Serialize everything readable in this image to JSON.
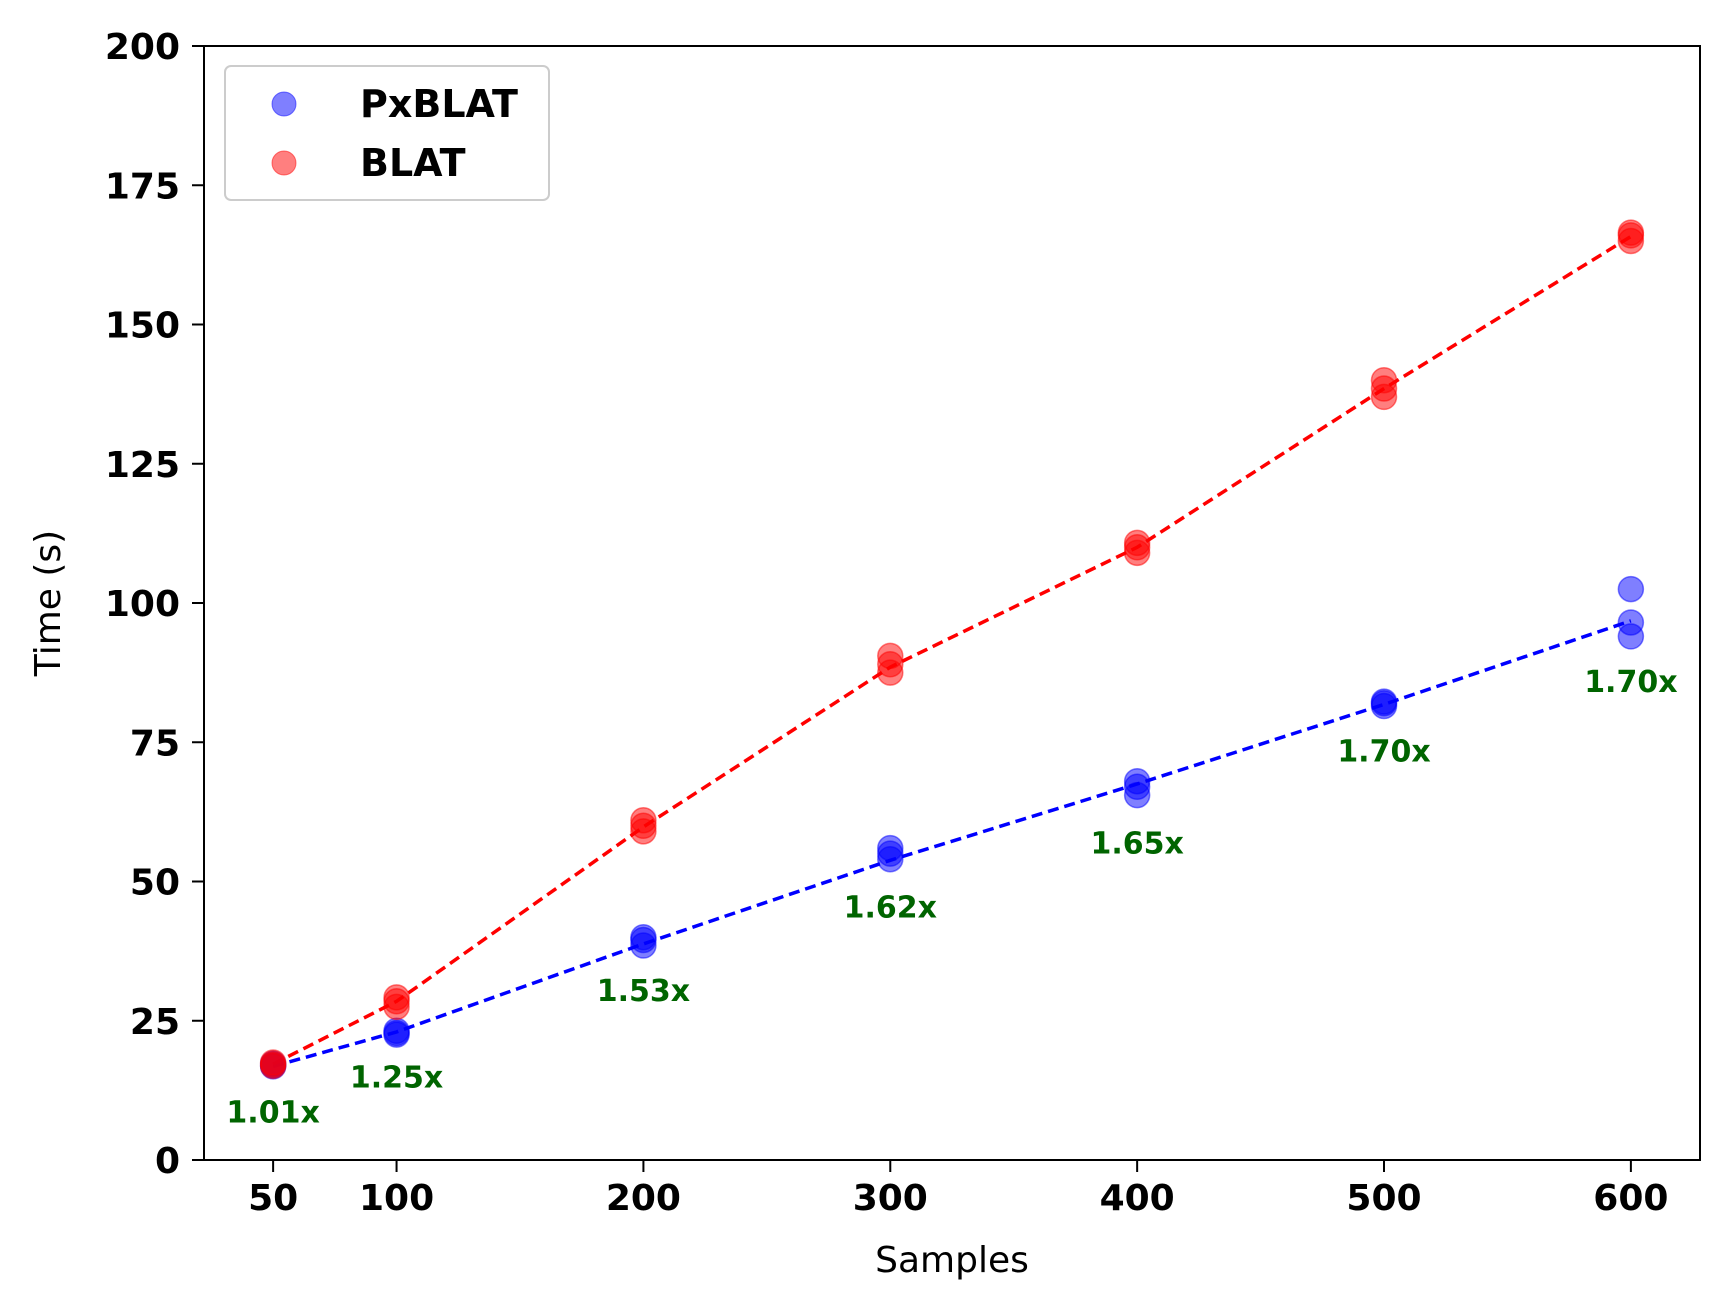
{
  "chart_data": {
    "type": "scatter",
    "title": "",
    "xlabel": "Samples",
    "ylabel": "Time (s)",
    "xlim": [
      22,
      628
    ],
    "ylim": [
      0,
      200
    ],
    "xticks": [
      50,
      100,
      200,
      300,
      400,
      500,
      600
    ],
    "yticks": [
      0,
      25,
      50,
      75,
      100,
      125,
      150,
      175,
      200
    ],
    "grid": false,
    "legend_position": "upper-left",
    "series": [
      {
        "name": "PxBLAT",
        "color": "#0000ff",
        "points": [
          {
            "x": 50,
            "y": 17.0
          },
          {
            "x": 50,
            "y": 17.3
          },
          {
            "x": 50,
            "y": 16.8
          },
          {
            "x": 100,
            "y": 22.5
          },
          {
            "x": 100,
            "y": 23.2
          },
          {
            "x": 100,
            "y": 22.8
          },
          {
            "x": 200,
            "y": 38.5
          },
          {
            "x": 200,
            "y": 39.5
          },
          {
            "x": 200,
            "y": 40.0
          },
          {
            "x": 300,
            "y": 54.0
          },
          {
            "x": 300,
            "y": 55.0
          },
          {
            "x": 300,
            "y": 56.0
          },
          {
            "x": 400,
            "y": 65.5
          },
          {
            "x": 400,
            "y": 67.0
          },
          {
            "x": 400,
            "y": 68.0
          },
          {
            "x": 500,
            "y": 81.5
          },
          {
            "x": 500,
            "y": 82.0
          },
          {
            "x": 500,
            "y": 82.3
          },
          {
            "x": 600,
            "y": 94.0
          },
          {
            "x": 600,
            "y": 96.5
          },
          {
            "x": 600,
            "y": 102.5
          }
        ],
        "trend": [
          {
            "x": 50,
            "y": 16.8
          },
          {
            "x": 100,
            "y": 23.0
          },
          {
            "x": 200,
            "y": 38.8
          },
          {
            "x": 300,
            "y": 53.8
          },
          {
            "x": 400,
            "y": 67.5
          },
          {
            "x": 500,
            "y": 81.8
          },
          {
            "x": 600,
            "y": 96.8
          }
        ]
      },
      {
        "name": "BLAT",
        "color": "#ff0000",
        "points": [
          {
            "x": 50,
            "y": 17.2
          },
          {
            "x": 50,
            "y": 17.5
          },
          {
            "x": 50,
            "y": 16.9
          },
          {
            "x": 100,
            "y": 27.5
          },
          {
            "x": 100,
            "y": 28.5
          },
          {
            "x": 100,
            "y": 29.2
          },
          {
            "x": 200,
            "y": 59.0
          },
          {
            "x": 200,
            "y": 60.0
          },
          {
            "x": 200,
            "y": 61.0
          },
          {
            "x": 300,
            "y": 87.5
          },
          {
            "x": 300,
            "y": 89.0
          },
          {
            "x": 300,
            "y": 90.5
          },
          {
            "x": 400,
            "y": 109.0
          },
          {
            "x": 400,
            "y": 110.0
          },
          {
            "x": 400,
            "y": 110.8
          },
          {
            "x": 500,
            "y": 137.0
          },
          {
            "x": 500,
            "y": 138.5
          },
          {
            "x": 500,
            "y": 140.0
          },
          {
            "x": 600,
            "y": 165.0
          },
          {
            "x": 600,
            "y": 166.0
          },
          {
            "x": 600,
            "y": 166.5
          }
        ],
        "trend": [
          {
            "x": 50,
            "y": 17.2
          },
          {
            "x": 100,
            "y": 28.5
          },
          {
            "x": 200,
            "y": 59.8
          },
          {
            "x": 300,
            "y": 88.5
          },
          {
            "x": 400,
            "y": 110.0
          },
          {
            "x": 500,
            "y": 138.5
          },
          {
            "x": 600,
            "y": 165.8
          }
        ]
      }
    ],
    "annotations": [
      {
        "text": "1.01x",
        "x": 50,
        "y": 8.5
      },
      {
        "text": "1.25x",
        "x": 100,
        "y": 14.8
      },
      {
        "text": "1.53x",
        "x": 200,
        "y": 30.3
      },
      {
        "text": "1.62x",
        "x": 300,
        "y": 45.3
      },
      {
        "text": "1.65x",
        "x": 400,
        "y": 56.8
      },
      {
        "text": "1.70x",
        "x": 500,
        "y": 73.3
      },
      {
        "text": "1.70x",
        "x": 600,
        "y": 85.8
      }
    ],
    "annotation_color": "#006400"
  }
}
